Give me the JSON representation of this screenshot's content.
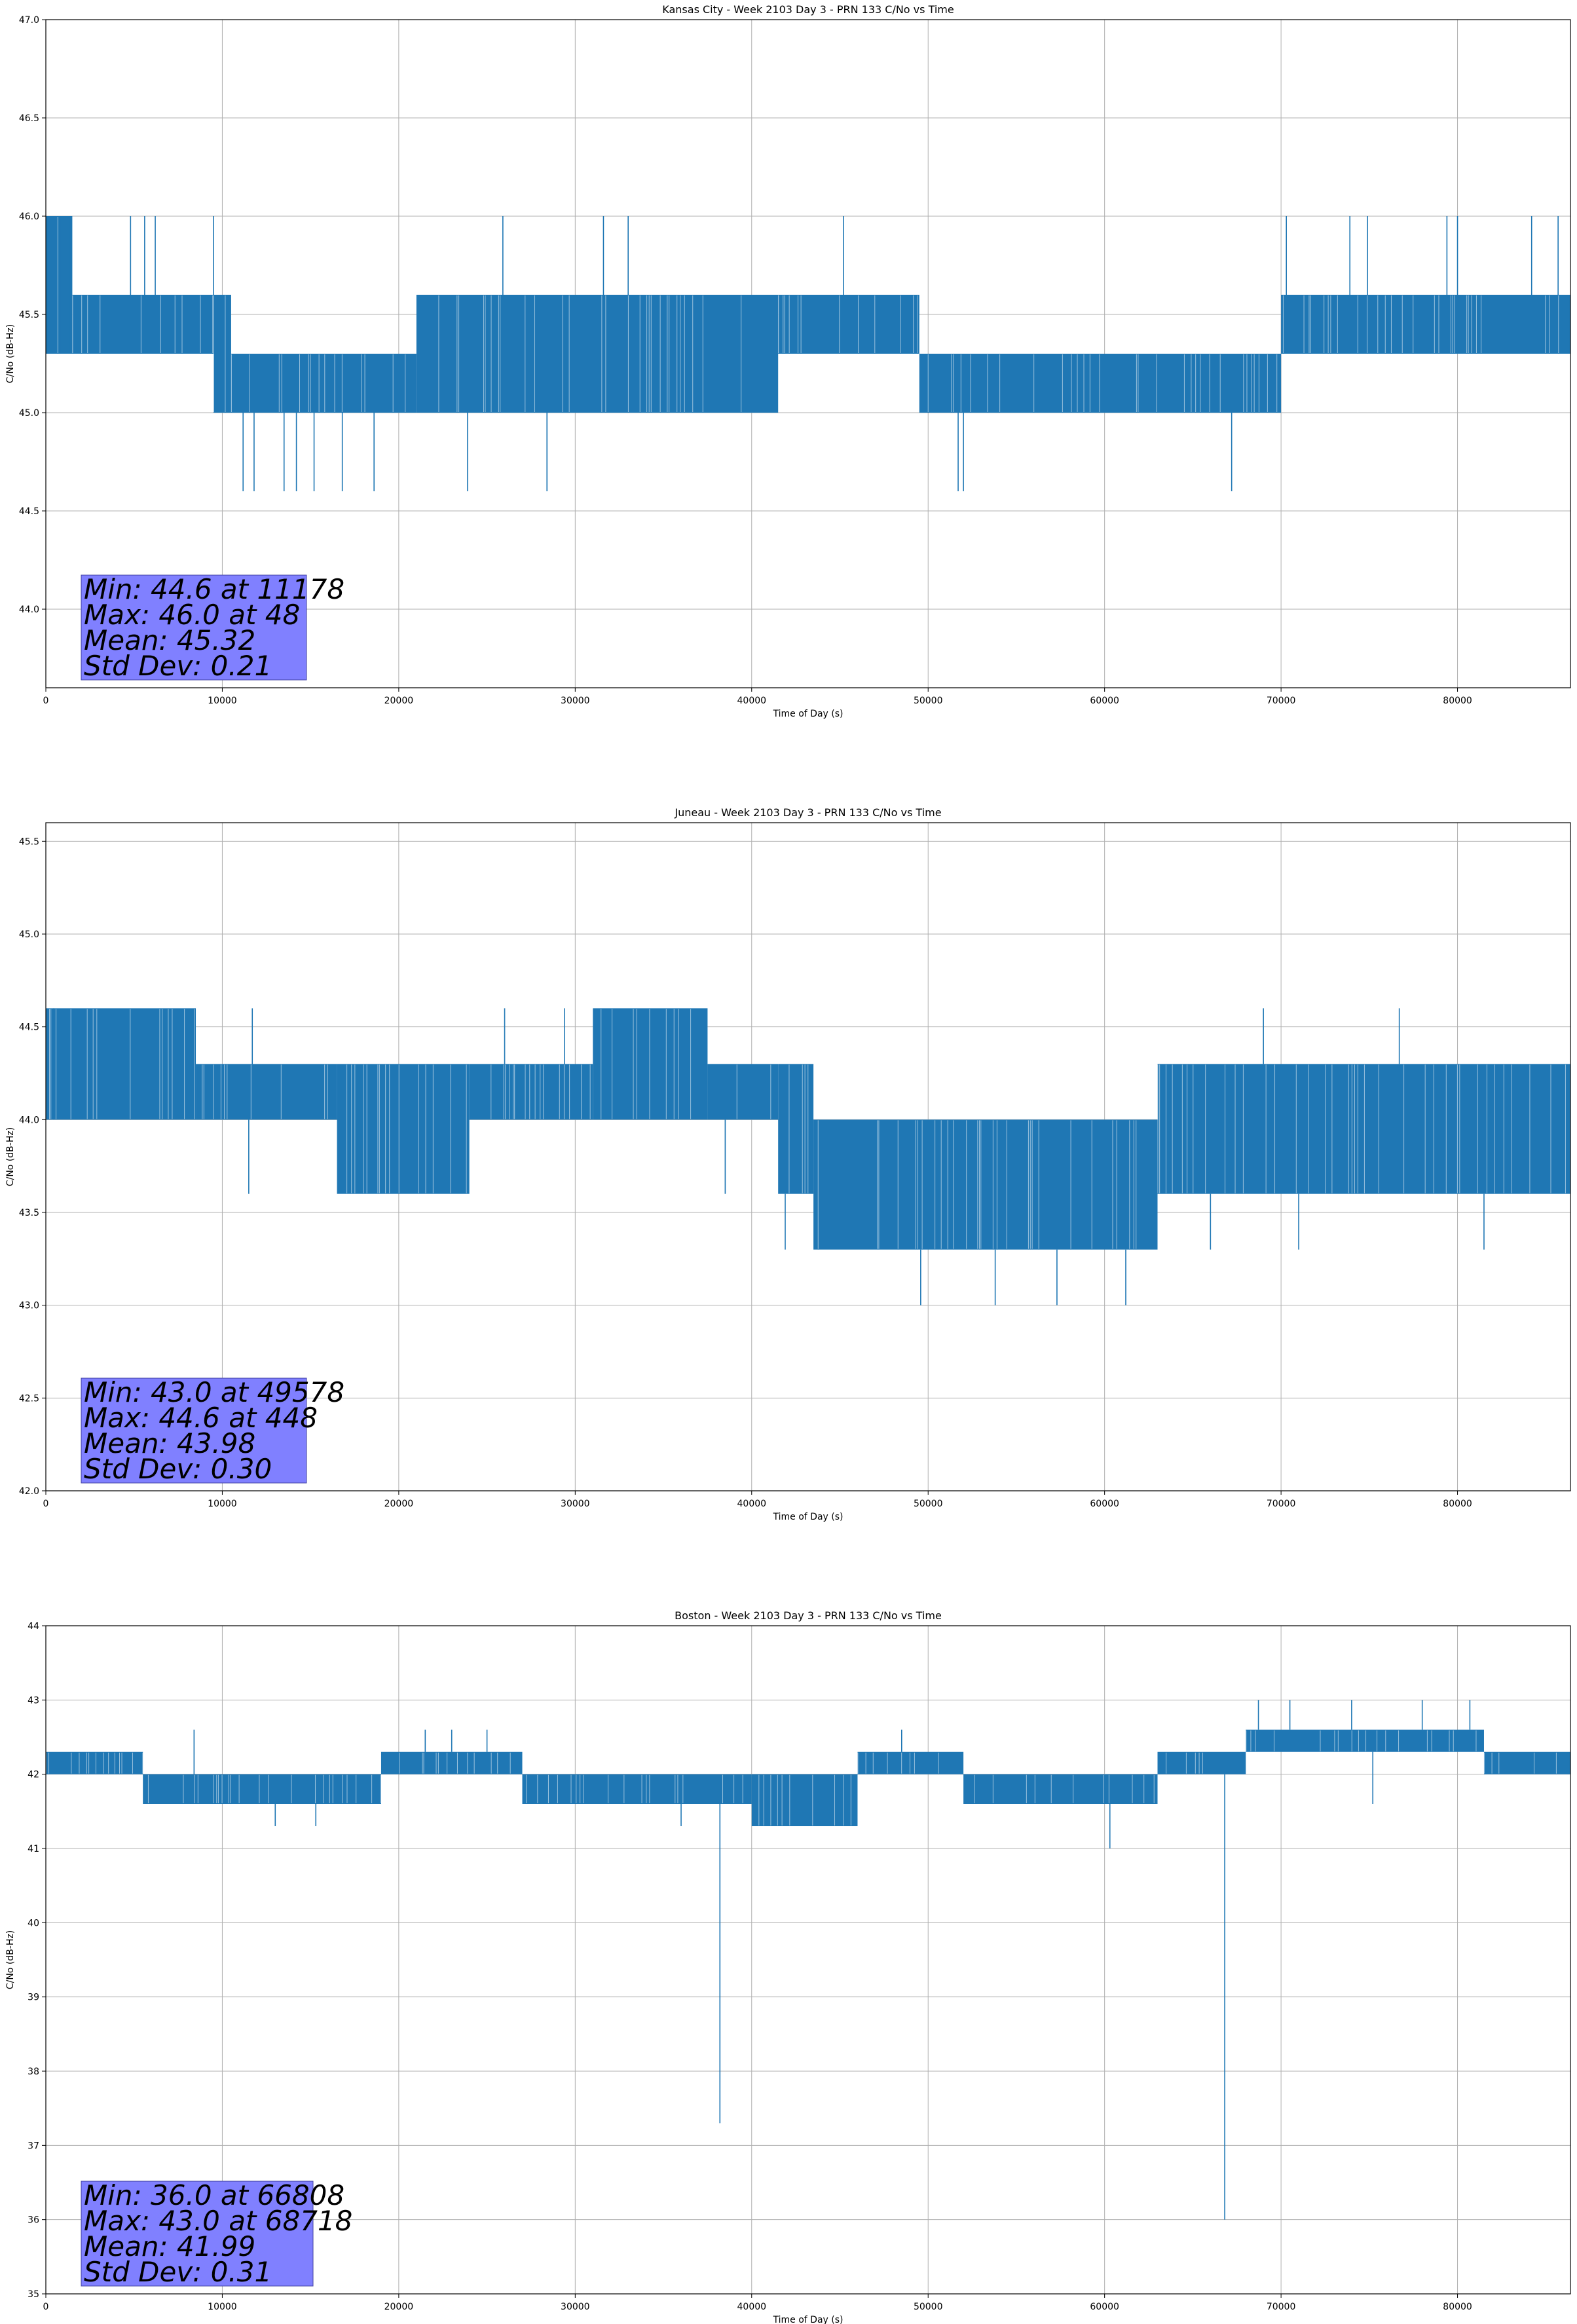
{
  "chart_data": [
    {
      "type": "line",
      "title": "Kansas City - Week 2103 Day 3 - PRN 133 C/No vs Time",
      "xlabel": "Time of Day (s)",
      "ylabel": "C/No (dB-Hz)",
      "xlim": [
        0,
        86400
      ],
      "ylim": [
        43.6,
        47.0
      ],
      "xticks": [
        0,
        10000,
        20000,
        30000,
        40000,
        50000,
        60000,
        70000,
        80000
      ],
      "yticks": [
        44.0,
        44.5,
        45.0,
        45.5,
        46.0,
        46.5,
        47.0
      ],
      "ytick_labels": [
        "44.0",
        "44.5",
        "45.0",
        "45.5",
        "46.0",
        "46.5",
        "47.0"
      ],
      "grid": true,
      "line_color": "#1f77b4",
      "series": [
        {
          "segments": [
            {
              "x": [
                0,
                1500
              ],
              "lo": 45.3,
              "hi": 46.0
            },
            {
              "x": [
                1500,
                9500
              ],
              "lo": 45.3,
              "hi": 45.6
            },
            {
              "x": [
                9500,
                10500
              ],
              "lo": 45.0,
              "hi": 45.6
            },
            {
              "x": [
                10500,
                21000
              ],
              "lo": 45.0,
              "hi": 45.3
            },
            {
              "x": [
                21000,
                41500
              ],
              "lo": 45.0,
              "hi": 45.6
            },
            {
              "x": [
                41500,
                49500
              ],
              "lo": 45.3,
              "hi": 45.6
            },
            {
              "x": [
                49500,
                70000
              ],
              "lo": 45.0,
              "hi": 45.3
            },
            {
              "x": [
                70000,
                86400
              ],
              "lo": 45.3,
              "hi": 45.6
            }
          ],
          "spikes": [
            {
              "x": 48,
              "y": 46.0
            },
            {
              "x": 800,
              "y": 46.0
            },
            {
              "x": 1400,
              "y": 46.0
            },
            {
              "x": 4800,
              "y": 46.0
            },
            {
              "x": 5600,
              "y": 46.0
            },
            {
              "x": 6200,
              "y": 46.0
            },
            {
              "x": 9500,
              "y": 46.0
            },
            {
              "x": 11178,
              "y": 44.6
            },
            {
              "x": 11800,
              "y": 44.6
            },
            {
              "x": 13500,
              "y": 44.6
            },
            {
              "x": 14200,
              "y": 44.6
            },
            {
              "x": 15200,
              "y": 44.6
            },
            {
              "x": 16800,
              "y": 44.6
            },
            {
              "x": 18600,
              "y": 44.6
            },
            {
              "x": 23900,
              "y": 44.6
            },
            {
              "x": 25900,
              "y": 46.0
            },
            {
              "x": 28400,
              "y": 44.6
            },
            {
              "x": 31600,
              "y": 46.0
            },
            {
              "x": 33000,
              "y": 46.0
            },
            {
              "x": 45200,
              "y": 46.0
            },
            {
              "x": 51700,
              "y": 44.6
            },
            {
              "x": 52000,
              "y": 44.6
            },
            {
              "x": 67200,
              "y": 44.6
            },
            {
              "x": 70300,
              "y": 46.0
            },
            {
              "x": 73900,
              "y": 46.0
            },
            {
              "x": 74900,
              "y": 46.0
            },
            {
              "x": 79400,
              "y": 46.0
            },
            {
              "x": 80000,
              "y": 46.0
            },
            {
              "x": 84200,
              "y": 46.0
            },
            {
              "x": 85700,
              "y": 46.0
            }
          ]
        }
      ],
      "annotation": [
        "Min: 44.6 at 11178",
        "Max: 46.0 at 48",
        "Mean: 45.32",
        "Std Dev: 0.21"
      ]
    },
    {
      "type": "line",
      "title": "Juneau - Week 2103 Day 3 - PRN 133 C/No vs Time",
      "xlabel": "Time of Day (s)",
      "ylabel": "C/No (dB-Hz)",
      "xlim": [
        0,
        86400
      ],
      "ylim": [
        42.0,
        45.6
      ],
      "xticks": [
        0,
        10000,
        20000,
        30000,
        40000,
        50000,
        60000,
        70000,
        80000
      ],
      "yticks": [
        42.0,
        42.5,
        43.0,
        43.5,
        44.0,
        44.5,
        45.0,
        45.5
      ],
      "ytick_labels": [
        "42.0",
        "42.5",
        "43.0",
        "43.5",
        "44.0",
        "44.5",
        "45.0",
        "45.5"
      ],
      "grid": true,
      "line_color": "#1f77b4",
      "series": [
        {
          "segments": [
            {
              "x": [
                0,
                8500
              ],
              "lo": 44.0,
              "hi": 44.6
            },
            {
              "x": [
                8500,
                16500
              ],
              "lo": 44.0,
              "hi": 44.3
            },
            {
              "x": [
                16500,
                24000
              ],
              "lo": 43.6,
              "hi": 44.3
            },
            {
              "x": [
                24000,
                31000
              ],
              "lo": 44.0,
              "hi": 44.3
            },
            {
              "x": [
                31000,
                37500
              ],
              "lo": 44.0,
              "hi": 44.6
            },
            {
              "x": [
                37500,
                41500
              ],
              "lo": 44.0,
              "hi": 44.3
            },
            {
              "x": [
                41500,
                43500
              ],
              "lo": 43.6,
              "hi": 44.3
            },
            {
              "x": [
                43500,
                63000
              ],
              "lo": 43.3,
              "hi": 44.0
            },
            {
              "x": [
                63000,
                86400
              ],
              "lo": 43.6,
              "hi": 44.3
            }
          ],
          "spikes": [
            {
              "x": 448,
              "y": 44.6
            },
            {
              "x": 11500,
              "y": 43.6
            },
            {
              "x": 11700,
              "y": 44.6
            },
            {
              "x": 26000,
              "y": 44.6
            },
            {
              "x": 29400,
              "y": 44.6
            },
            {
              "x": 38500,
              "y": 43.6
            },
            {
              "x": 41900,
              "y": 43.3
            },
            {
              "x": 49578,
              "y": 43.0
            },
            {
              "x": 53800,
              "y": 43.0
            },
            {
              "x": 57300,
              "y": 43.0
            },
            {
              "x": 61200,
              "y": 43.0
            },
            {
              "x": 69000,
              "y": 44.6
            },
            {
              "x": 76700,
              "y": 44.6
            },
            {
              "x": 66000,
              "y": 43.3
            },
            {
              "x": 71000,
              "y": 43.3
            },
            {
              "x": 81500,
              "y": 43.3
            }
          ]
        }
      ],
      "annotation": [
        "Min: 43.0 at 49578",
        "Max: 44.6 at 448",
        "Mean: 43.98",
        "Std Dev: 0.30"
      ]
    },
    {
      "type": "line",
      "title": "Boston - Week 2103 Day 3 - PRN 133 C/No vs Time",
      "xlabel": "Time of Day (s)",
      "ylabel": "C/No (dB-Hz)",
      "xlim": [
        0,
        86400
      ],
      "ylim": [
        35,
        44
      ],
      "xticks": [
        0,
        10000,
        20000,
        30000,
        40000,
        50000,
        60000,
        70000,
        80000
      ],
      "yticks": [
        35,
        36,
        37,
        38,
        39,
        40,
        41,
        42,
        43,
        44
      ],
      "ytick_labels": [
        "35",
        "36",
        "37",
        "38",
        "39",
        "40",
        "41",
        "42",
        "43",
        "44"
      ],
      "grid": true,
      "line_color": "#1f77b4",
      "series": [
        {
          "segments": [
            {
              "x": [
                0,
                5500
              ],
              "lo": 42.0,
              "hi": 42.3
            },
            {
              "x": [
                5500,
                19000
              ],
              "lo": 41.6,
              "hi": 42.0
            },
            {
              "x": [
                19000,
                27000
              ],
              "lo": 42.0,
              "hi": 42.3
            },
            {
              "x": [
                27000,
                40000
              ],
              "lo": 41.6,
              "hi": 42.0
            },
            {
              "x": [
                40000,
                46000
              ],
              "lo": 41.3,
              "hi": 42.0
            },
            {
              "x": [
                46000,
                52000
              ],
              "lo": 42.0,
              "hi": 42.3
            },
            {
              "x": [
                52000,
                63000
              ],
              "lo": 41.6,
              "hi": 42.0
            },
            {
              "x": [
                63000,
                68000
              ],
              "lo": 42.0,
              "hi": 42.3
            },
            {
              "x": [
                68000,
                81500
              ],
              "lo": 42.3,
              "hi": 42.6
            },
            {
              "x": [
                81500,
                86400
              ],
              "lo": 42.0,
              "hi": 42.3
            }
          ],
          "spikes": [
            {
              "x": 8400,
              "y": 42.6
            },
            {
              "x": 13000,
              "y": 41.3
            },
            {
              "x": 15300,
              "y": 41.3
            },
            {
              "x": 21500,
              "y": 42.6
            },
            {
              "x": 23000,
              "y": 42.6
            },
            {
              "x": 25000,
              "y": 42.6
            },
            {
              "x": 38200,
              "y": 37.3
            },
            {
              "x": 36000,
              "y": 41.3
            },
            {
              "x": 48500,
              "y": 42.6
            },
            {
              "x": 60300,
              "y": 41.0
            },
            {
              "x": 66808,
              "y": 36.0
            },
            {
              "x": 68718,
              "y": 43.0
            },
            {
              "x": 70500,
              "y": 43.0
            },
            {
              "x": 74000,
              "y": 43.0
            },
            {
              "x": 78000,
              "y": 43.0
            },
            {
              "x": 80700,
              "y": 43.0
            },
            {
              "x": 75200,
              "y": 41.6
            }
          ]
        }
      ],
      "annotation": [
        "Min: 36.0 at 66808",
        "Max: 43.0 at 68718",
        "Mean: 41.99",
        "Std Dev: 0.31"
      ]
    }
  ]
}
